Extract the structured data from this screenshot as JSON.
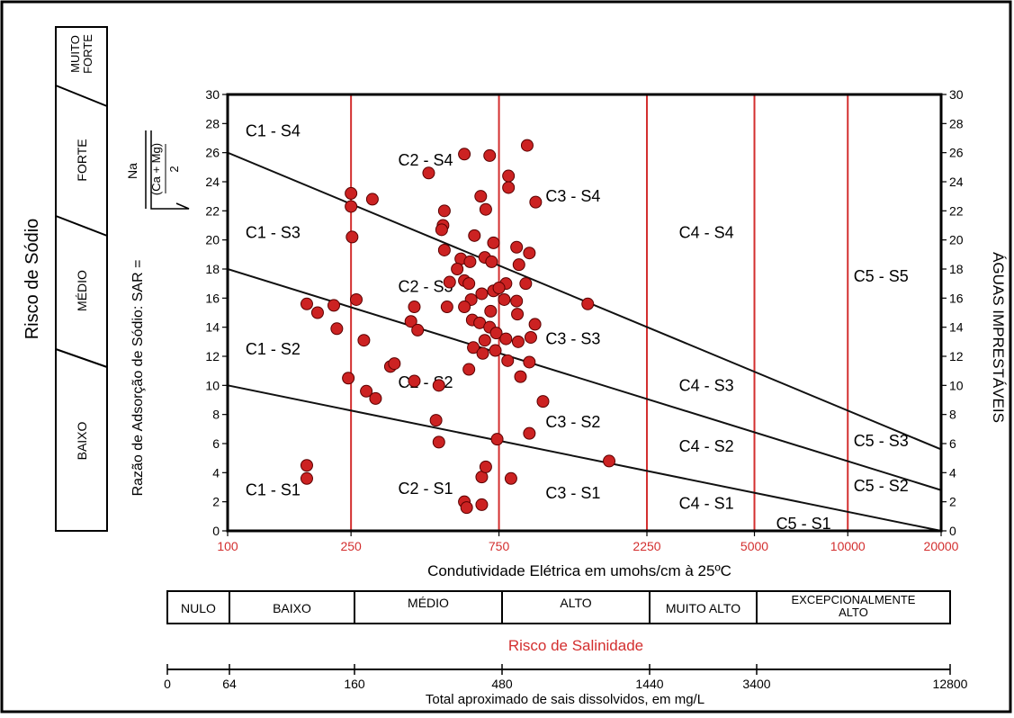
{
  "chart_data": {
    "type": "scatter",
    "title": "",
    "xlabel": "Condutividade Elétrica em umohs/cm à 25ºC",
    "ylabel": "Razão de Adsorção de Sódio: SAR =",
    "y2label": "ÁGUAS IMPRESTÁVEIS",
    "left_label": "Risco de Sódio",
    "sar_formula": {
      "numerator": "Na",
      "denominator": "(Ca + Mg)",
      "divisor": "2"
    },
    "x_scale": "log",
    "x_ticks": [
      {
        "value": 100,
        "label": "100"
      },
      {
        "value": 250,
        "label": "250"
      },
      {
        "value": 750,
        "label": "750"
      },
      {
        "value": 2250,
        "label": "2250"
      },
      {
        "value": 5000,
        "label": "5000"
      },
      {
        "value": 10000,
        "label": "10000"
      },
      {
        "value": 20000,
        "label": "20000"
      }
    ],
    "class_boundaries": [
      250,
      750,
      2250,
      5000,
      10000
    ],
    "ylim": [
      0,
      30
    ],
    "y_ticks": [
      "0",
      "2",
      "4",
      "6",
      "8",
      "10",
      "12",
      "14",
      "16",
      "18",
      "20",
      "22",
      "24",
      "26",
      "28",
      "30"
    ],
    "sar_lines": [
      {
        "name": "S1-S2",
        "points": [
          [
            100,
            10
          ],
          [
            20000,
            0
          ]
        ]
      },
      {
        "name": "S2-S3",
        "points": [
          [
            100,
            18
          ],
          [
            20000,
            2.8
          ]
        ]
      },
      {
        "name": "S3-S4",
        "points": [
          [
            100,
            26
          ],
          [
            20000,
            5.6
          ]
        ]
      }
    ],
    "sodium_risk_levels": [
      "BAIXO",
      "MÉDIO",
      "FORTE",
      "MUITO FORTE"
    ],
    "zone_labels": [
      {
        "text": "C1 - S4",
        "x": 140,
        "y": 27.5
      },
      {
        "text": "C1 - S3",
        "x": 140,
        "y": 20.5
      },
      {
        "text": "C1 - S2",
        "x": 140,
        "y": 12.5
      },
      {
        "text": "C1 - S1",
        "x": 140,
        "y": 2.8
      },
      {
        "text": "C2 - S4",
        "x": 435,
        "y": 25.5
      },
      {
        "text": "C2 - S3",
        "x": 435,
        "y": 16.8
      },
      {
        "text": "C2 - S2",
        "x": 435,
        "y": 10.2
      },
      {
        "text": "C2 - S1",
        "x": 435,
        "y": 2.9
      },
      {
        "text": "C3 - S4",
        "x": 1300,
        "y": 23
      },
      {
        "text": "C3 - S3",
        "x": 1300,
        "y": 13.2
      },
      {
        "text": "C3 - S2",
        "x": 1300,
        "y": 7.5
      },
      {
        "text": "C3 - S1",
        "x": 1300,
        "y": 2.6
      },
      {
        "text": "C4 - S4",
        "x": 3500,
        "y": 20.5
      },
      {
        "text": "C4 - S3",
        "x": 3500,
        "y": 10
      },
      {
        "text": "C4 - S2",
        "x": 3500,
        "y": 5.8
      },
      {
        "text": "C4 - S1",
        "x": 3500,
        "y": 1.9
      },
      {
        "text": "C5 - S5",
        "x": 12800,
        "y": 17.5
      },
      {
        "text": "C5 - S3",
        "x": 12800,
        "y": 6.2
      },
      {
        "text": "C5 - S2",
        "x": 12800,
        "y": 3.1
      },
      {
        "text": "C5 - S1",
        "x": 7200,
        "y": 0.5
      }
    ],
    "points": [
      [
        250,
        23.2
      ],
      [
        250,
        22.3
      ],
      [
        252,
        20.2
      ],
      [
        293,
        22.8
      ],
      [
        445,
        24.6
      ],
      [
        580,
        25.9
      ],
      [
        700,
        25.8
      ],
      [
        925,
        26.5
      ],
      [
        805,
        24.4
      ],
      [
        805,
        23.6
      ],
      [
        985,
        22.6
      ],
      [
        500,
        22.0
      ],
      [
        495,
        21.0
      ],
      [
        490,
        20.7
      ],
      [
        655,
        23.0
      ],
      [
        680,
        22.1
      ],
      [
        625,
        20.3
      ],
      [
        720,
        19.8
      ],
      [
        855,
        19.5
      ],
      [
        940,
        19.1
      ],
      [
        500,
        19.3
      ],
      [
        565,
        18.7
      ],
      [
        605,
        18.5
      ],
      [
        675,
        18.8
      ],
      [
        710,
        18.5
      ],
      [
        870,
        18.3
      ],
      [
        550,
        18.0
      ],
      [
        790,
        17.0
      ],
      [
        915,
        17.0
      ],
      [
        520,
        17.1
      ],
      [
        580,
        17.2
      ],
      [
        600,
        17.0
      ],
      [
        660,
        16.3
      ],
      [
        720,
        16.5
      ],
      [
        750,
        16.7
      ],
      [
        610,
        15.9
      ],
      [
        780,
        15.9
      ],
      [
        855,
        15.8
      ],
      [
        1450,
        15.6
      ],
      [
        510,
        15.4
      ],
      [
        580,
        15.4
      ],
      [
        705,
        15.1
      ],
      [
        860,
        14.9
      ],
      [
        260,
        15.9
      ],
      [
        180,
        15.6
      ],
      [
        195,
        15.0
      ],
      [
        220,
        15.5
      ],
      [
        400,
        15.4
      ],
      [
        390,
        14.4
      ],
      [
        410,
        13.8
      ],
      [
        225,
        13.9
      ],
      [
        615,
        14.5
      ],
      [
        650,
        14.3
      ],
      [
        700,
        14.0
      ],
      [
        735,
        13.6
      ],
      [
        790,
        13.2
      ],
      [
        865,
        13.0
      ],
      [
        950,
        13.3
      ],
      [
        980,
        14.2
      ],
      [
        675,
        13.1
      ],
      [
        620,
        12.6
      ],
      [
        665,
        12.2
      ],
      [
        730,
        12.4
      ],
      [
        800,
        11.7
      ],
      [
        880,
        10.6
      ],
      [
        940,
        11.6
      ],
      [
        275,
        13.1
      ],
      [
        335,
        11.3
      ],
      [
        345,
        11.5
      ],
      [
        245,
        10.5
      ],
      [
        280,
        9.6
      ],
      [
        300,
        9.1
      ],
      [
        400,
        10.3
      ],
      [
        480,
        10.0
      ],
      [
        600,
        11.1
      ],
      [
        1040,
        8.9
      ],
      [
        470,
        7.6
      ],
      [
        480,
        6.1
      ],
      [
        740,
        6.3
      ],
      [
        940,
        6.7
      ],
      [
        1700,
        4.8
      ],
      [
        180,
        4.5
      ],
      [
        180,
        3.6
      ],
      [
        660,
        3.7
      ],
      [
        680,
        4.4
      ],
      [
        820,
        3.6
      ],
      [
        580,
        2.0
      ],
      [
        590,
        1.6
      ],
      [
        660,
        1.8
      ]
    ],
    "marker_color": "#cc2222",
    "boundary_color": "#d32f2f",
    "grid": false
  },
  "salinity_scale": {
    "title": "Risco de Salinidade",
    "classes": [
      "NULO",
      "BAIXO",
      "MÉDIO",
      "ALTO",
      "MUITO ALTO",
      "EXCEPCIONALMENTE ALTO"
    ]
  },
  "tds_scale": {
    "label": "Total aproximado de sais dissolvidos, em mg/L",
    "ticks": [
      "0",
      "64",
      "160",
      "480",
      "1440",
      "3400",
      "12800"
    ]
  }
}
